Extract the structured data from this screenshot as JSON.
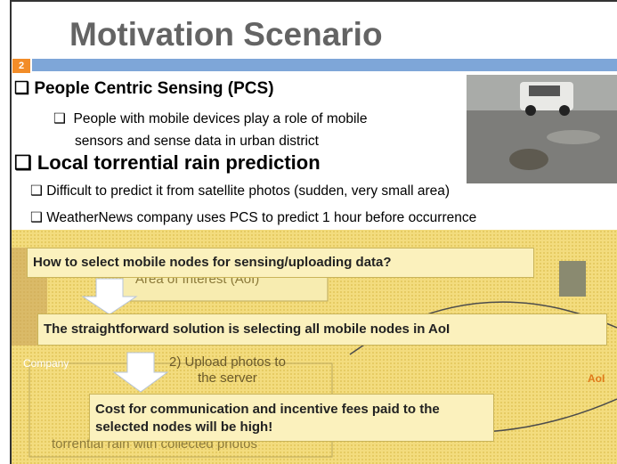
{
  "title": "Motivation Scenario",
  "slide_number": "2",
  "bullets": [
    {
      "text": "People Centric Sensing (PCS)",
      "items": [
        "People with mobile devices play a role of mobile",
        "sensors and sense data in urban district"
      ]
    },
    {
      "text": "Local torrential rain prediction",
      "items": [
        "Difficult to predict it from satellite photos (sudden, very small area)",
        "WeatherNews company uses PCS to predict 1 hour before occurrence"
      ]
    }
  ],
  "diagram": {
    "area_label": "Area of Interest (AoI)",
    "company_label": "Company",
    "step2_line1": "2) Upload photos to",
    "step2_line2": "the server",
    "step3": "torrential rain with collected photos",
    "aoi_label": "AoI"
  },
  "callouts": [
    "How to select mobile nodes for sensing/uploading data?",
    "The straightforward solution is selecting all mobile nodes in AoI",
    [
      "Cost for communication and incentive fees paid to the",
      "selected nodes will be high!"
    ]
  ]
}
